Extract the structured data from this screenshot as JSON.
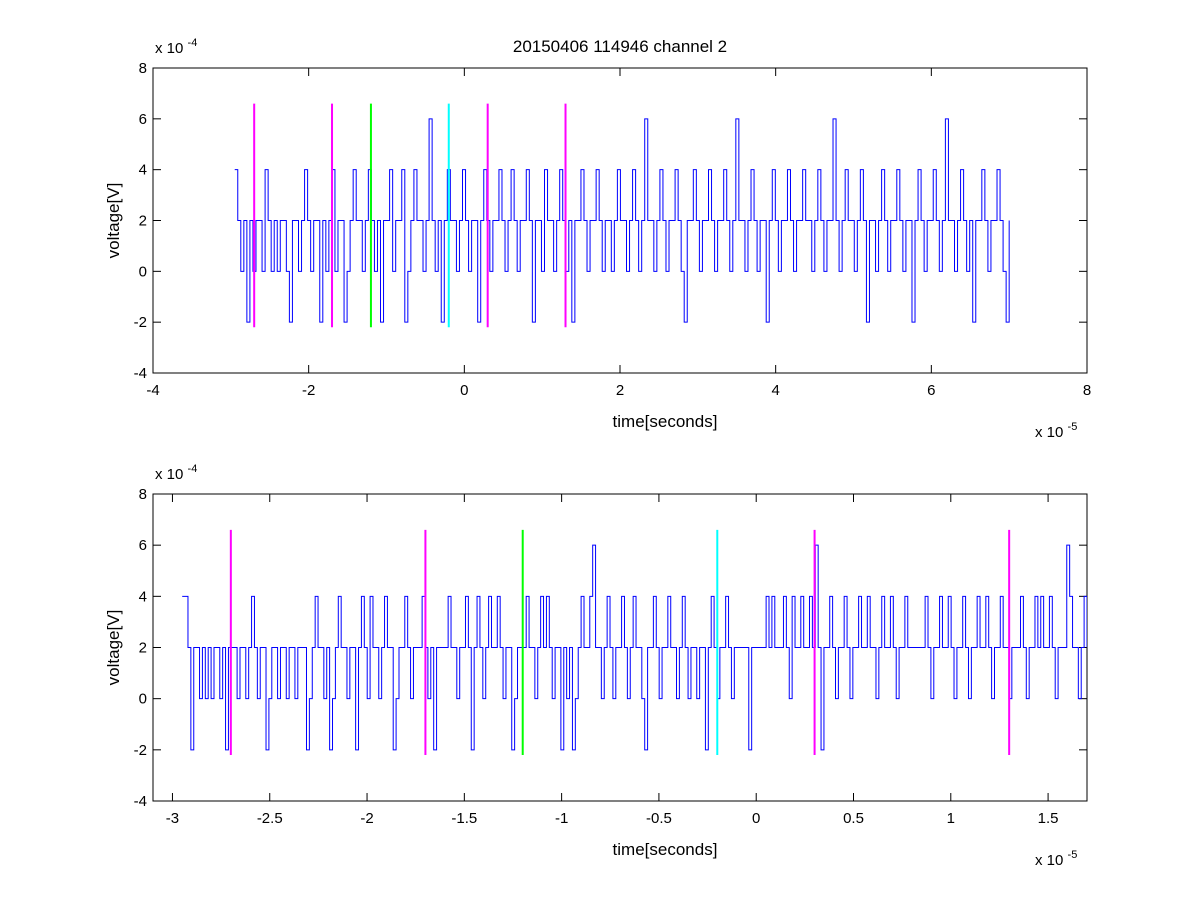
{
  "figure": {
    "title": "20150406 114946 channel 2"
  },
  "chart_data": [
    {
      "type": "line",
      "title": "20150406 114946 channel 2",
      "xlabel": "time[seconds]",
      "ylabel": "voltage[V]",
      "x_exponent_label": "x 10",
      "x_exponent": "-5",
      "y_exponent_label": "x 10",
      "y_exponent": "-4",
      "xlim": [
        -4,
        8
      ],
      "ylim": [
        -4,
        8
      ],
      "xticks": [
        -4,
        -2,
        0,
        2,
        4,
        6,
        8
      ],
      "xtick_labels": [
        "-4",
        "-2",
        "0",
        "2",
        "4",
        "6",
        "8"
      ],
      "yticks": [
        -4,
        -2,
        0,
        2,
        4,
        6,
        8
      ],
      "ytick_labels": [
        "-4",
        "-2",
        "0",
        "2",
        "4",
        "6",
        "8"
      ],
      "grid": false,
      "signal": {
        "color": "#0000ff",
        "x_start": -2.95,
        "x_end": 7.0,
        "values": [
          4,
          2,
          0,
          2,
          -2,
          2,
          0,
          2,
          2,
          0,
          4,
          2,
          0,
          2,
          0,
          2,
          2,
          0,
          -2,
          2,
          2,
          0,
          2,
          4,
          2,
          0,
          2,
          2,
          -2,
          2,
          0,
          2,
          4,
          0,
          2,
          2,
          -2,
          0,
          2,
          4,
          2,
          2,
          0,
          2,
          4,
          2,
          0,
          2,
          -2,
          2,
          2,
          4,
          0,
          2,
          2,
          4,
          -2,
          0,
          2,
          4,
          2,
          2,
          0,
          2,
          6,
          2,
          0,
          2,
          -2,
          2,
          4,
          2,
          2,
          0,
          2,
          4,
          2,
          0,
          2,
          2,
          -2,
          2,
          4,
          2,
          0,
          2,
          2,
          4,
          2,
          0,
          2,
          4,
          2,
          0,
          2,
          2,
          4,
          2,
          -2,
          2,
          2,
          0,
          4,
          2,
          2,
          0,
          2,
          4,
          2,
          0,
          2,
          -2,
          2,
          2,
          4,
          2,
          0,
          2,
          2,
          4,
          2,
          0,
          2,
          2,
          0,
          2,
          4,
          2,
          2,
          0,
          2,
          4,
          2,
          0,
          2,
          6,
          2,
          2,
          0,
          2,
          4,
          2,
          0,
          2,
          2,
          4,
          2,
          0,
          -2,
          2,
          2,
          4,
          2,
          0,
          2,
          2,
          4,
          2,
          0,
          2,
          2,
          4,
          2,
          0,
          2,
          6,
          2,
          2,
          0,
          2,
          4,
          2,
          0,
          2,
          2,
          -2,
          2,
          4,
          2,
          0,
          2,
          2,
          4,
          2,
          0,
          2,
          2,
          4,
          2,
          2,
          0,
          2,
          4,
          2,
          0,
          2,
          2,
          6,
          2,
          0,
          2,
          4,
          2,
          2,
          0,
          2,
          4,
          2,
          -2,
          2,
          2,
          0,
          2,
          4,
          2,
          0,
          2,
          2,
          4,
          2,
          0,
          2,
          2,
          -2,
          2,
          4,
          2,
          0,
          2,
          2,
          4,
          2,
          0,
          2,
          6,
          2,
          2,
          0,
          2,
          4,
          2,
          0,
          2,
          -2,
          2,
          2,
          4,
          2,
          0,
          2,
          2,
          4,
          2,
          0,
          -2,
          2
        ]
      },
      "markers": [
        {
          "x": -2.7,
          "color": "#ff00ff",
          "y_range": [
            -2.2,
            6.6
          ]
        },
        {
          "x": -1.7,
          "color": "#ff00ff",
          "y_range": [
            -2.2,
            6.6
          ]
        },
        {
          "x": -1.2,
          "color": "#00ff00",
          "y_range": [
            -2.2,
            6.6
          ]
        },
        {
          "x": -0.2,
          "color": "#00ffff",
          "y_range": [
            -2.2,
            6.6
          ]
        },
        {
          "x": 0.3,
          "color": "#ff00ff",
          "y_range": [
            -2.2,
            6.6
          ]
        },
        {
          "x": 1.3,
          "color": "#ff00ff",
          "y_range": [
            -2.2,
            6.6
          ]
        }
      ]
    },
    {
      "type": "line",
      "title": "",
      "xlabel": "time[seconds]",
      "ylabel": "voltage[V]",
      "x_exponent_label": "x 10",
      "x_exponent": "-5",
      "y_exponent_label": "x 10",
      "y_exponent": "-4",
      "xlim": [
        -3.1,
        1.7
      ],
      "ylim": [
        -4,
        8
      ],
      "xticks": [
        -3,
        -2.5,
        -2,
        -1.5,
        -1,
        -0.5,
        0,
        0.5,
        1,
        1.5
      ],
      "xtick_labels": [
        "-3",
        "-2.5",
        "-2",
        "-1.5",
        "-1",
        "-0.5",
        "0",
        "0.5",
        "1",
        "1.5"
      ],
      "yticks": [
        -4,
        -2,
        0,
        2,
        4,
        6,
        8
      ],
      "ytick_labels": [
        "-4",
        "-2",
        "0",
        "2",
        "4",
        "6",
        "8"
      ],
      "grid": false,
      "signal": {
        "color": "#0000ff",
        "x_start": -2.95,
        "x_end": 1.7,
        "values": [
          4,
          4,
          2,
          -2,
          2,
          2,
          0,
          2,
          0,
          2,
          0,
          2,
          2,
          0,
          2,
          -2,
          2,
          2,
          2,
          0,
          2,
          2,
          0,
          2,
          4,
          2,
          0,
          2,
          2,
          -2,
          0,
          2,
          2,
          0,
          2,
          2,
          0,
          2,
          2,
          0,
          2,
          2,
          2,
          -2,
          0,
          2,
          4,
          2,
          2,
          0,
          2,
          -2,
          0,
          2,
          4,
          2,
          2,
          0,
          2,
          2,
          -2,
          2,
          4,
          2,
          0,
          4,
          2,
          2,
          0,
          2,
          4,
          2,
          2,
          -2,
          0,
          2,
          2,
          4,
          2,
          0,
          2,
          2,
          2,
          4,
          2,
          0,
          2,
          -2,
          2,
          2,
          2,
          2,
          4,
          2,
          2,
          0,
          2,
          2,
          4,
          2,
          -2,
          2,
          4,
          2,
          0,
          2,
          4,
          2,
          2,
          4,
          2,
          0,
          2,
          2,
          -2,
          0,
          2,
          2,
          2,
          4,
          2,
          2,
          0,
          2,
          4,
          2,
          4,
          2,
          0,
          2,
          2,
          -2,
          2,
          0,
          2,
          -2,
          0,
          2,
          4,
          2,
          2,
          4,
          6,
          2,
          2,
          0,
          2,
          4,
          2,
          0,
          2,
          2,
          4,
          2,
          0,
          2,
          4,
          2,
          2,
          0,
          -2,
          2,
          2,
          4,
          2,
          0,
          2,
          2,
          4,
          2,
          2,
          0,
          2,
          4,
          2,
          0,
          2,
          2,
          0,
          2,
          2,
          -2,
          2,
          4,
          2,
          0,
          2,
          2,
          4,
          2,
          0,
          2,
          2,
          2,
          2,
          2,
          -2,
          2,
          2,
          2,
          2,
          2,
          4,
          2,
          4,
          2,
          2,
          2,
          4,
          2,
          0,
          4,
          2,
          2,
          4,
          2,
          2,
          4,
          2,
          6,
          2,
          -2,
          2,
          2,
          4,
          2,
          0,
          2,
          2,
          4,
          2,
          0,
          2,
          2,
          4,
          2,
          2,
          4,
          2,
          2,
          0,
          2,
          4,
          2,
          2,
          4,
          2,
          0,
          2,
          2,
          4,
          2,
          2,
          2,
          2,
          2,
          2,
          4,
          2,
          0,
          2,
          2,
          4,
          2,
          2,
          4,
          2,
          0,
          2,
          2,
          4,
          2,
          0,
          2,
          2,
          4,
          2,
          2,
          4,
          2,
          0,
          2,
          2,
          4,
          2,
          2,
          0,
          2,
          2,
          2,
          4,
          2,
          0,
          2,
          2,
          4,
          2,
          4,
          2,
          2,
          4,
          2,
          0,
          2,
          2,
          2,
          6,
          4,
          2,
          2,
          0,
          2,
          4,
          2
        ]
      },
      "markers": [
        {
          "x": -2.7,
          "color": "#ff00ff",
          "y_range": [
            -2.2,
            6.6
          ]
        },
        {
          "x": -1.7,
          "color": "#ff00ff",
          "y_range": [
            -2.2,
            6.6
          ]
        },
        {
          "x": -1.2,
          "color": "#00ff00",
          "y_range": [
            -2.2,
            6.6
          ]
        },
        {
          "x": -0.2,
          "color": "#00ffff",
          "y_range": [
            -2.2,
            6.6
          ]
        },
        {
          "x": 0.3,
          "color": "#ff00ff",
          "y_range": [
            -2.2,
            6.6
          ]
        },
        {
          "x": 1.3,
          "color": "#ff00ff",
          "y_range": [
            -2.2,
            6.6
          ]
        }
      ]
    }
  ]
}
